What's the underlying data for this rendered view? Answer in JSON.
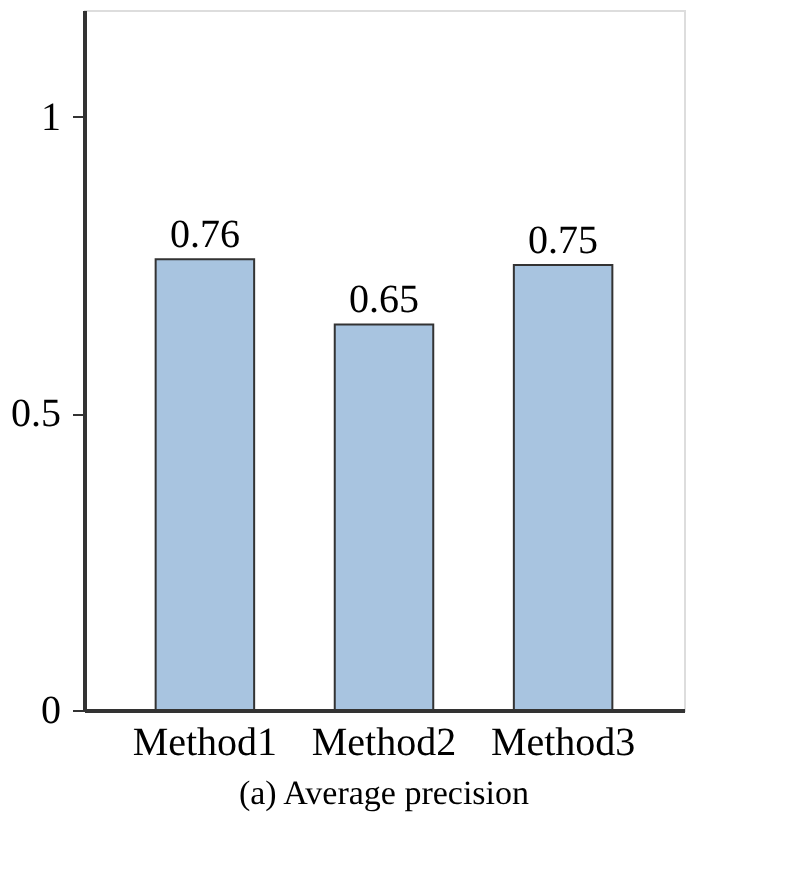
{
  "chart_data": {
    "type": "bar",
    "title": "(a) Average precision",
    "categories": [
      "Method1",
      "Method2",
      "Method3"
    ],
    "values": [
      0.76,
      0.65,
      0.75
    ],
    "color": "#a8c4e0",
    "ylim": [
      0,
      1.18
    ],
    "yticks": [
      0,
      0.5,
      1
    ],
    "data_labels": true,
    "grid": false
  }
}
